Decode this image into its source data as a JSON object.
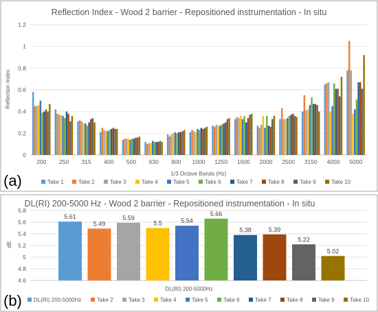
{
  "chart_data": [
    {
      "type": "bar",
      "panel_label": "(a)",
      "title": "Reflection Index - Wood 2 barrier - Repositioned instrumentation - In situ",
      "xlabel": "1/3 Octave Bands (Hz)",
      "ylabel": "Reflection Index",
      "ylim": [
        0,
        1.2
      ],
      "yticks": [
        "0",
        "0.2",
        "0.4",
        "0.6",
        "0.8",
        "1",
        "1.2"
      ],
      "grid": true,
      "legend_position": "bottom",
      "categories": [
        "200",
        "250",
        "315",
        "400",
        "500",
        "630",
        "800",
        "1000",
        "1250",
        "1600",
        "2000",
        "2500",
        "3150",
        "4000",
        "5000"
      ],
      "series": [
        {
          "name": "Take 1",
          "color": "#5B9BD5",
          "values": [
            0.58,
            0.42,
            0.31,
            0.21,
            0.14,
            0.12,
            0.19,
            0.21,
            0.27,
            0.33,
            0.27,
            0.33,
            0.4,
            0.65,
            0.78
          ]
        },
        {
          "name": "Take 2",
          "color": "#ED7D31",
          "values": [
            0.45,
            0.38,
            0.32,
            0.25,
            0.15,
            0.1,
            0.17,
            0.23,
            0.26,
            0.35,
            0.25,
            0.43,
            0.55,
            0.66,
            1.05
          ]
        },
        {
          "name": "Take 3",
          "color": "#A5A5A5",
          "values": [
            0.45,
            0.37,
            0.31,
            0.23,
            0.15,
            0.11,
            0.19,
            0.22,
            0.28,
            0.34,
            0.28,
            0.33,
            0.41,
            0.67,
            0.78
          ]
        },
        {
          "name": "Take 4",
          "color": "#FFC000",
          "values": [
            0.46,
            0.37,
            0.29,
            0.22,
            0.15,
            0.11,
            0.2,
            0.21,
            0.27,
            0.36,
            0.36,
            0.33,
            0.42,
            0.4,
            0.38
          ]
        },
        {
          "name": "Take 5",
          "color": "#4472C4",
          "values": [
            0.5,
            0.36,
            0.29,
            0.22,
            0.14,
            0.13,
            0.21,
            0.24,
            0.27,
            0.33,
            0.25,
            0.34,
            0.46,
            0.45,
            0.42
          ]
        },
        {
          "name": "Take 6",
          "color": "#70AD47",
          "values": [
            0.39,
            0.34,
            0.27,
            0.23,
            0.15,
            0.12,
            0.2,
            0.23,
            0.28,
            0.36,
            0.36,
            0.36,
            0.53,
            0.66,
            0.51
          ]
        },
        {
          "name": "Take 7",
          "color": "#255E91",
          "values": [
            0.4,
            0.4,
            0.3,
            0.24,
            0.15,
            0.12,
            0.21,
            0.25,
            0.29,
            0.3,
            0.27,
            0.37,
            0.47,
            0.61,
            0.67
          ]
        },
        {
          "name": "Take 8",
          "color": "#9E480E",
          "values": [
            0.42,
            0.38,
            0.33,
            0.25,
            0.16,
            0.12,
            0.21,
            0.24,
            0.3,
            0.34,
            0.26,
            0.38,
            0.47,
            0.61,
            0.67
          ]
        },
        {
          "name": "Take 9",
          "color": "#636363",
          "values": [
            0.4,
            0.31,
            0.34,
            0.24,
            0.16,
            0.13,
            0.22,
            0.25,
            0.33,
            0.37,
            0.33,
            0.36,
            0.46,
            0.54,
            0.61
          ]
        },
        {
          "name": "Take 10",
          "color": "#997300",
          "values": [
            0.47,
            0.36,
            0.3,
            0.24,
            0.17,
            0.12,
            0.23,
            0.26,
            0.34,
            0.38,
            0.36,
            0.35,
            0.4,
            0.72,
            0.92
          ]
        }
      ]
    },
    {
      "type": "bar",
      "panel_label": "(b)",
      "title": "DL(RI) 200-5000 Hz - Wood 2 barrier - Repositioned instrumentation - In situ",
      "xlabel": "DL(RI) 200-5000Hz",
      "ylabel": "dB",
      "ylim": [
        4.6,
        5.8
      ],
      "yticks": [
        "4.6",
        "4.8",
        "5",
        "5.2",
        "5.4",
        "5.6",
        "5.8"
      ],
      "grid": true,
      "legend_position": "bottom",
      "categories": [
        "DL(RI) 200-5000Hz",
        "Take 2",
        "Take 3",
        "Take 4",
        "Take 5",
        "Take 6",
        "Take 7",
        "Take 8",
        "Take 9",
        "Take 10"
      ],
      "values": [
        5.61,
        5.49,
        5.59,
        5.5,
        5.54,
        5.66,
        5.38,
        5.39,
        5.22,
        5.02
      ],
      "labels": [
        "5.61",
        "5.49",
        "5.59",
        "5.5",
        "5.54",
        "5.66",
        "5.38",
        "5.39",
        "5.22",
        "5.02"
      ],
      "colors": [
        "#5B9BD5",
        "#ED7D31",
        "#A5A5A5",
        "#FFC000",
        "#4472C4",
        "#70AD47",
        "#255E91",
        "#9E480E",
        "#636363",
        "#997300"
      ]
    }
  ]
}
